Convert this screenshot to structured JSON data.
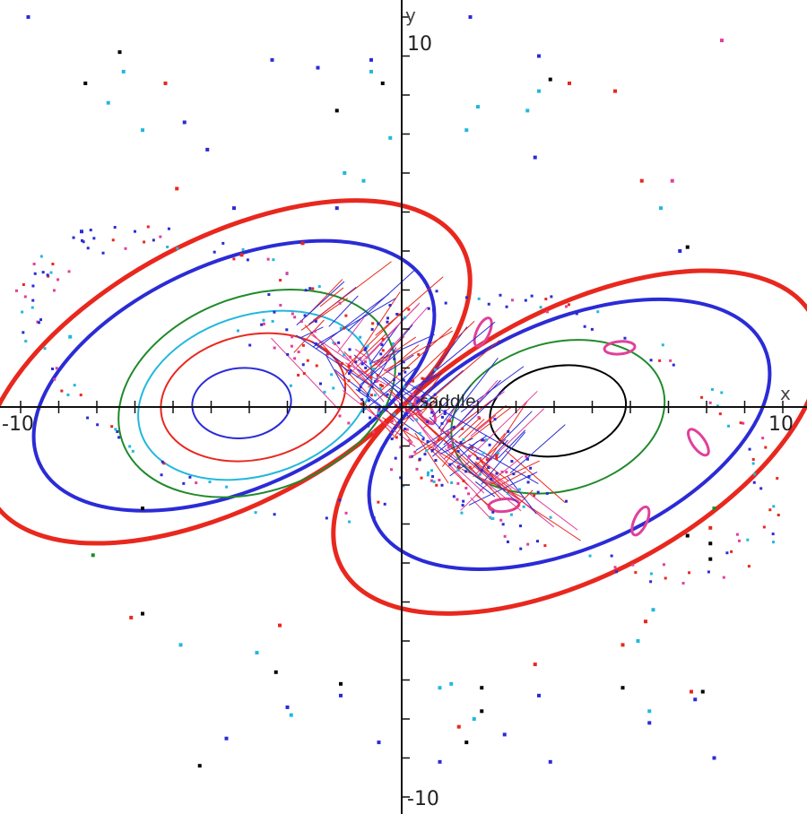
{
  "chart_data": {
    "type": "scatter",
    "title": "",
    "xlabel": "x",
    "ylabel": "y",
    "xlim": [
      -10,
      10
    ],
    "ylim": [
      -10,
      10
    ],
    "grid": false,
    "x_tick_labels": [
      "-10",
      "10"
    ],
    "y_tick_labels": [
      "10",
      "-10"
    ],
    "annotation": {
      "text": "saddle",
      "x": 0,
      "y": 0
    },
    "colors": {
      "red": "#e8281e",
      "blue": "#2b2bd6",
      "green": "#1f8a2a",
      "cyan": "#22b8dc",
      "black": "#000000",
      "pink": "#e0409a"
    },
    "closed_orbits": [
      {
        "color": "red",
        "cx": -4.6,
        "cy": 0.9,
        "rx": 7.0,
        "ry": 3.4,
        "rot": -28,
        "width": 5
      },
      {
        "color": "blue",
        "cx": -4.4,
        "cy": 0.8,
        "rx": 5.6,
        "ry": 2.9,
        "rot": -24,
        "width": 4
      },
      {
        "color": "green",
        "cx": -3.8,
        "cy": 0.35,
        "rx": 3.75,
        "ry": 2.5,
        "rot": -20,
        "width": 2
      },
      {
        "color": "cyan",
        "cx": -3.85,
        "cy": 0.3,
        "rx": 3.15,
        "ry": 2.05,
        "rot": -18,
        "width": 2
      },
      {
        "color": "red",
        "cx": -3.9,
        "cy": 0.25,
        "rx": 2.45,
        "ry": 1.6,
        "rot": -12,
        "width": 2
      },
      {
        "color": "blue",
        "cx": -4.2,
        "cy": 0.1,
        "rx": 1.3,
        "ry": 0.9,
        "rot": -5,
        "width": 2
      },
      {
        "color": "red",
        "cx": 4.6,
        "cy": -0.9,
        "rx": 7.0,
        "ry": 3.4,
        "rot": -28,
        "width": 5
      },
      {
        "color": "blue",
        "cx": 4.4,
        "cy": -0.7,
        "rx": 5.6,
        "ry": 2.9,
        "rot": -24,
        "width": 4
      },
      {
        "color": "green",
        "cx": 4.1,
        "cy": -0.25,
        "rx": 2.85,
        "ry": 1.9,
        "rot": -15,
        "width": 2
      },
      {
        "color": "black",
        "cx": 4.1,
        "cy": -0.1,
        "rx": 1.8,
        "ry": 1.15,
        "rot": -10,
        "width": 2
      }
    ],
    "island_chain": {
      "color": "pink",
      "cx": 4.2,
      "cy": -0.5,
      "rx": 3.7,
      "ry": 2.45,
      "rot": -18,
      "count": 6
    },
    "scattered_points": [
      {
        "x": -7.4,
        "y": 9.1,
        "color": "black"
      },
      {
        "x": -8.3,
        "y": 8.3,
        "color": "black"
      },
      {
        "x": -6.2,
        "y": 8.3,
        "color": "red"
      },
      {
        "x": -7.7,
        "y": 7.8,
        "color": "cyan"
      },
      {
        "x": -7.3,
        "y": 8.6,
        "color": "cyan"
      },
      {
        "x": -6.8,
        "y": 7.1,
        "color": "cyan"
      },
      {
        "x": -5.7,
        "y": 7.3,
        "color": "blue"
      },
      {
        "x": -9.8,
        "y": 10.0,
        "color": "blue"
      },
      {
        "x": -3.4,
        "y": 8.9,
        "color": "blue"
      },
      {
        "x": -4.4,
        "y": 5.1,
        "color": "blue"
      },
      {
        "x": -5.9,
        "y": 5.6,
        "color": "red"
      },
      {
        "x": -5.1,
        "y": 6.6,
        "color": "blue"
      },
      {
        "x": -8.4,
        "y": 4.5,
        "color": "blue"
      },
      {
        "x": -4.2,
        "y": 3.9,
        "color": "red"
      },
      {
        "x": -2.2,
        "y": 8.7,
        "color": "blue"
      },
      {
        "x": -1.7,
        "y": 7.6,
        "color": "black"
      },
      {
        "x": -1.5,
        "y": 6.0,
        "color": "cyan"
      },
      {
        "x": -1.0,
        "y": 5.8,
        "color": "cyan"
      },
      {
        "x": -1.7,
        "y": 5.1,
        "color": "blue"
      },
      {
        "x": -0.8,
        "y": 8.6,
        "color": "cyan"
      },
      {
        "x": -0.5,
        "y": 8.3,
        "color": "black"
      },
      {
        "x": -0.8,
        "y": 8.9,
        "color": "blue"
      },
      {
        "x": -0.3,
        "y": 6.9,
        "color": "cyan"
      },
      {
        "x": -2.6,
        "y": 4.2,
        "color": "red"
      },
      {
        "x": -8.7,
        "y": 1.8,
        "color": "cyan"
      },
      {
        "x": -8.1,
        "y": -3.8,
        "color": "green"
      },
      {
        "x": -6.8,
        "y": -2.6,
        "color": "black"
      },
      {
        "x": -7.1,
        "y": -5.4,
        "color": "red"
      },
      {
        "x": -6.8,
        "y": -5.3,
        "color": "black"
      },
      {
        "x": -5.8,
        "y": -6.1,
        "color": "cyan"
      },
      {
        "x": -3.3,
        "y": -6.8,
        "color": "black"
      },
      {
        "x": -3.0,
        "y": -7.7,
        "color": "blue"
      },
      {
        "x": -2.9,
        "y": -7.9,
        "color": "cyan"
      },
      {
        "x": -4.6,
        "y": -8.5,
        "color": "blue"
      },
      {
        "x": -5.3,
        "y": -9.2,
        "color": "black"
      },
      {
        "x": -3.8,
        "y": -6.3,
        "color": "cyan"
      },
      {
        "x": -3.2,
        "y": -5.6,
        "color": "red"
      },
      {
        "x": -1.6,
        "y": -7.1,
        "color": "black"
      },
      {
        "x": -1.6,
        "y": -7.4,
        "color": "blue"
      },
      {
        "x": -0.6,
        "y": -8.6,
        "color": "blue"
      },
      {
        "x": 3.6,
        "y": 9.0,
        "color": "blue"
      },
      {
        "x": 3.9,
        "y": 8.4,
        "color": "black"
      },
      {
        "x": 4.4,
        "y": 8.3,
        "color": "red"
      },
      {
        "x": 3.6,
        "y": 8.1,
        "color": "cyan"
      },
      {
        "x": 2.0,
        "y": 7.7,
        "color": "cyan"
      },
      {
        "x": 1.7,
        "y": 7.1,
        "color": "cyan"
      },
      {
        "x": 3.3,
        "y": 7.6,
        "color": "cyan"
      },
      {
        "x": 3.5,
        "y": 6.4,
        "color": "blue"
      },
      {
        "x": 5.6,
        "y": 8.1,
        "color": "red"
      },
      {
        "x": 1.8,
        "y": 10.0,
        "color": "blue"
      },
      {
        "x": 8.4,
        "y": 9.4,
        "color": "pink"
      },
      {
        "x": 6.3,
        "y": 5.8,
        "color": "red"
      },
      {
        "x": 7.1,
        "y": 5.8,
        "color": "pink"
      },
      {
        "x": 7.5,
        "y": 4.1,
        "color": "black"
      },
      {
        "x": 7.3,
        "y": 4.0,
        "color": "blue"
      },
      {
        "x": 6.8,
        "y": 5.1,
        "color": "cyan"
      },
      {
        "x": 8.2,
        "y": -2.6,
        "color": "green"
      },
      {
        "x": 8.1,
        "y": -3.1,
        "color": "red"
      },
      {
        "x": 8.1,
        "y": -3.5,
        "color": "black"
      },
      {
        "x": 8.1,
        "y": -3.9,
        "color": "black"
      },
      {
        "x": 7.5,
        "y": -3.3,
        "color": "black"
      },
      {
        "x": 6.6,
        "y": -5.2,
        "color": "cyan"
      },
      {
        "x": 6.4,
        "y": -5.5,
        "color": "red"
      },
      {
        "x": 6.2,
        "y": -6.0,
        "color": "cyan"
      },
      {
        "x": 5.8,
        "y": -6.1,
        "color": "red"
      },
      {
        "x": 5.8,
        "y": -7.2,
        "color": "black"
      },
      {
        "x": 7.6,
        "y": -7.3,
        "color": "red"
      },
      {
        "x": 7.9,
        "y": -7.3,
        "color": "black"
      },
      {
        "x": 7.7,
        "y": -7.5,
        "color": "blue"
      },
      {
        "x": 6.5,
        "y": -7.8,
        "color": "cyan"
      },
      {
        "x": 6.5,
        "y": -8.1,
        "color": "blue"
      },
      {
        "x": 8.2,
        "y": -9.0,
        "color": "blue"
      },
      {
        "x": 3.9,
        "y": -9.1,
        "color": "blue"
      },
      {
        "x": 2.1,
        "y": -7.8,
        "color": "black"
      },
      {
        "x": 1.9,
        "y": -8.0,
        "color": "cyan"
      },
      {
        "x": 1.5,
        "y": -8.2,
        "color": "red"
      },
      {
        "x": 1.7,
        "y": -8.6,
        "color": "black"
      },
      {
        "x": 3.6,
        "y": -7.4,
        "color": "blue"
      },
      {
        "x": 2.1,
        "y": -7.2,
        "color": "black"
      },
      {
        "x": 1.0,
        "y": -7.2,
        "color": "cyan"
      },
      {
        "x": 1.0,
        "y": -9.1,
        "color": "blue"
      },
      {
        "x": 1.3,
        "y": -7.1,
        "color": "cyan"
      },
      {
        "x": 2.7,
        "y": -8.4,
        "color": "blue"
      },
      {
        "x": 3.5,
        "y": -6.6,
        "color": "red"
      }
    ]
  }
}
